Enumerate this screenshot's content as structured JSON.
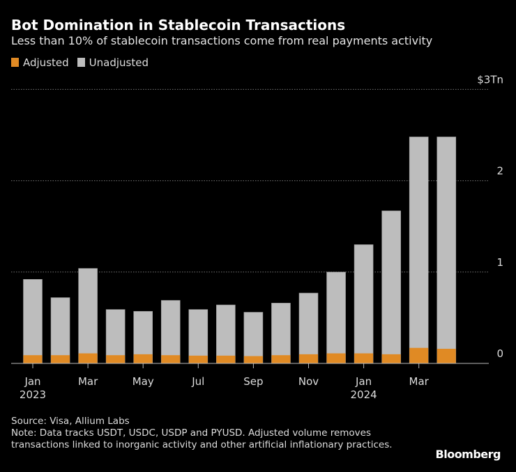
{
  "title": "Bot Domination in Stablecoin Transactions",
  "subtitle": "Less than 10% of stablecoin transactions come from real payments activity",
  "source": "Source: Visa, Allium Labs",
  "note": "Note: Data tracks USDT, USDC, USDP and PYUSD. Adjusted volume removes transactions linked to inorganic activity and other artificial inflationary practices.",
  "brand": "Bloomberg",
  "chart_data": {
    "type": "bar",
    "stacked": "overlaid",
    "categories": [
      "Jan 2023",
      "Feb 2023",
      "Mar 2023",
      "Apr 2023",
      "May 2023",
      "Jun 2023",
      "Jul 2023",
      "Aug 2023",
      "Sep 2023",
      "Oct 2023",
      "Nov 2023",
      "Dec 2023",
      "Jan 2024",
      "Feb 2024",
      "Mar 2024",
      "Apr 2024"
    ],
    "series": [
      {
        "name": "Adjusted",
        "color": "#e08a24",
        "values": [
          0.09,
          0.09,
          0.11,
          0.09,
          0.1,
          0.09,
          0.085,
          0.085,
          0.08,
          0.09,
          0.1,
          0.11,
          0.11,
          0.1,
          0.17,
          0.16
        ]
      },
      {
        "name": "Unadjusted",
        "color": "#bdbdbd",
        "values": [
          0.92,
          0.72,
          1.04,
          0.59,
          0.57,
          0.69,
          0.59,
          0.64,
          0.56,
          0.66,
          0.77,
          1.0,
          1.3,
          1.67,
          2.48,
          2.48
        ]
      }
    ],
    "x_tick_labels": [
      [
        "Jan",
        "2023"
      ],
      [
        "Mar",
        ""
      ],
      [
        "May",
        ""
      ],
      [
        "Jul",
        ""
      ],
      [
        "Sep",
        ""
      ],
      [
        "Nov",
        ""
      ],
      [
        "Jan",
        "2024"
      ],
      [
        "Mar",
        ""
      ]
    ],
    "y_ticks": [
      {
        "v": 0,
        "label": "0"
      },
      {
        "v": 1,
        "label": "1"
      },
      {
        "v": 2,
        "label": "2"
      },
      {
        "v": 3,
        "label": "$3Tn"
      }
    ],
    "ylim": [
      0,
      3
    ],
    "unit": "$ trillions",
    "grid": true,
    "legend": "top-left"
  }
}
